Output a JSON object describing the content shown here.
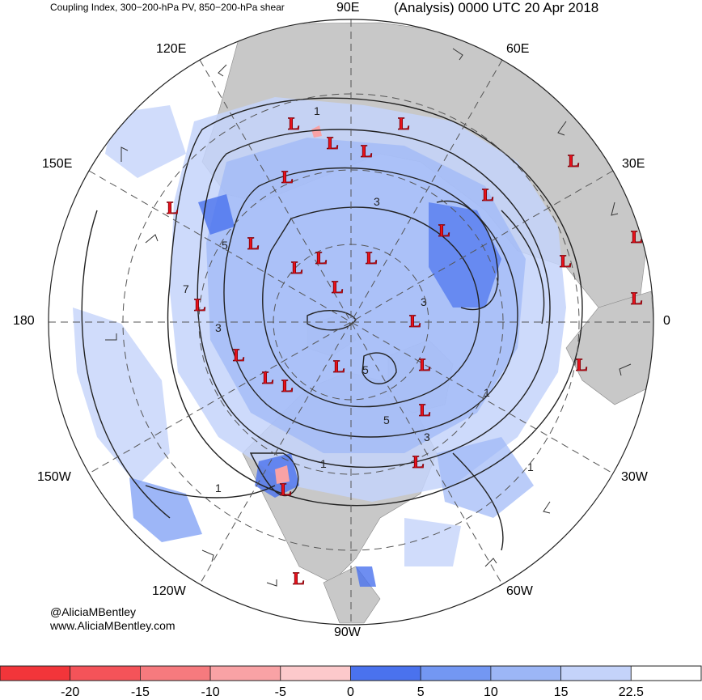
{
  "header": {
    "title_left": "Coupling Index, 300−200-hPa PV, 850−200-hPa shear",
    "title_right": "(Analysis) 0000 UTC 20 Apr 2018"
  },
  "longitude_labels": {
    "lon_90e": "90E",
    "lon_120e": "120E",
    "lon_60e": "60E",
    "lon_150e": "150E",
    "lon_30e": "30E",
    "lon_180": "180",
    "lon_0": "0",
    "lon_150w": "150W",
    "lon_30w": "30W",
    "lon_120w": "120W",
    "lon_60w": "60W",
    "lon_90w": "90W"
  },
  "credits": {
    "handle": "@AliciaMBentley",
    "website": "www.AliciaMBentley.com"
  },
  "colorbar": {
    "labels": [
      "-20",
      "-15",
      "-10",
      "-5",
      "0",
      "5",
      "10",
      "15",
      "22.5"
    ],
    "colors": [
      "#f2353a",
      "#f45359",
      "#f67a7e",
      "#f9a2a5",
      "#fcc9cb",
      "#4a72ee",
      "#7397f3",
      "#9cb6f6",
      "#c4d3fa",
      "#ffffff"
    ]
  },
  "low_marker": "L",
  "contour_labels": [
    "1",
    "3",
    "5",
    "7"
  ],
  "colors": {
    "land": "#c8c8c8",
    "coupling_blue_strong": "#4a72ee",
    "coupling_blue_mid": "#7397f3",
    "coupling_blue_light": "#9cb6f6",
    "coupling_blue_pale": "#c4d3fa",
    "low_marker": "#e8111b"
  }
}
